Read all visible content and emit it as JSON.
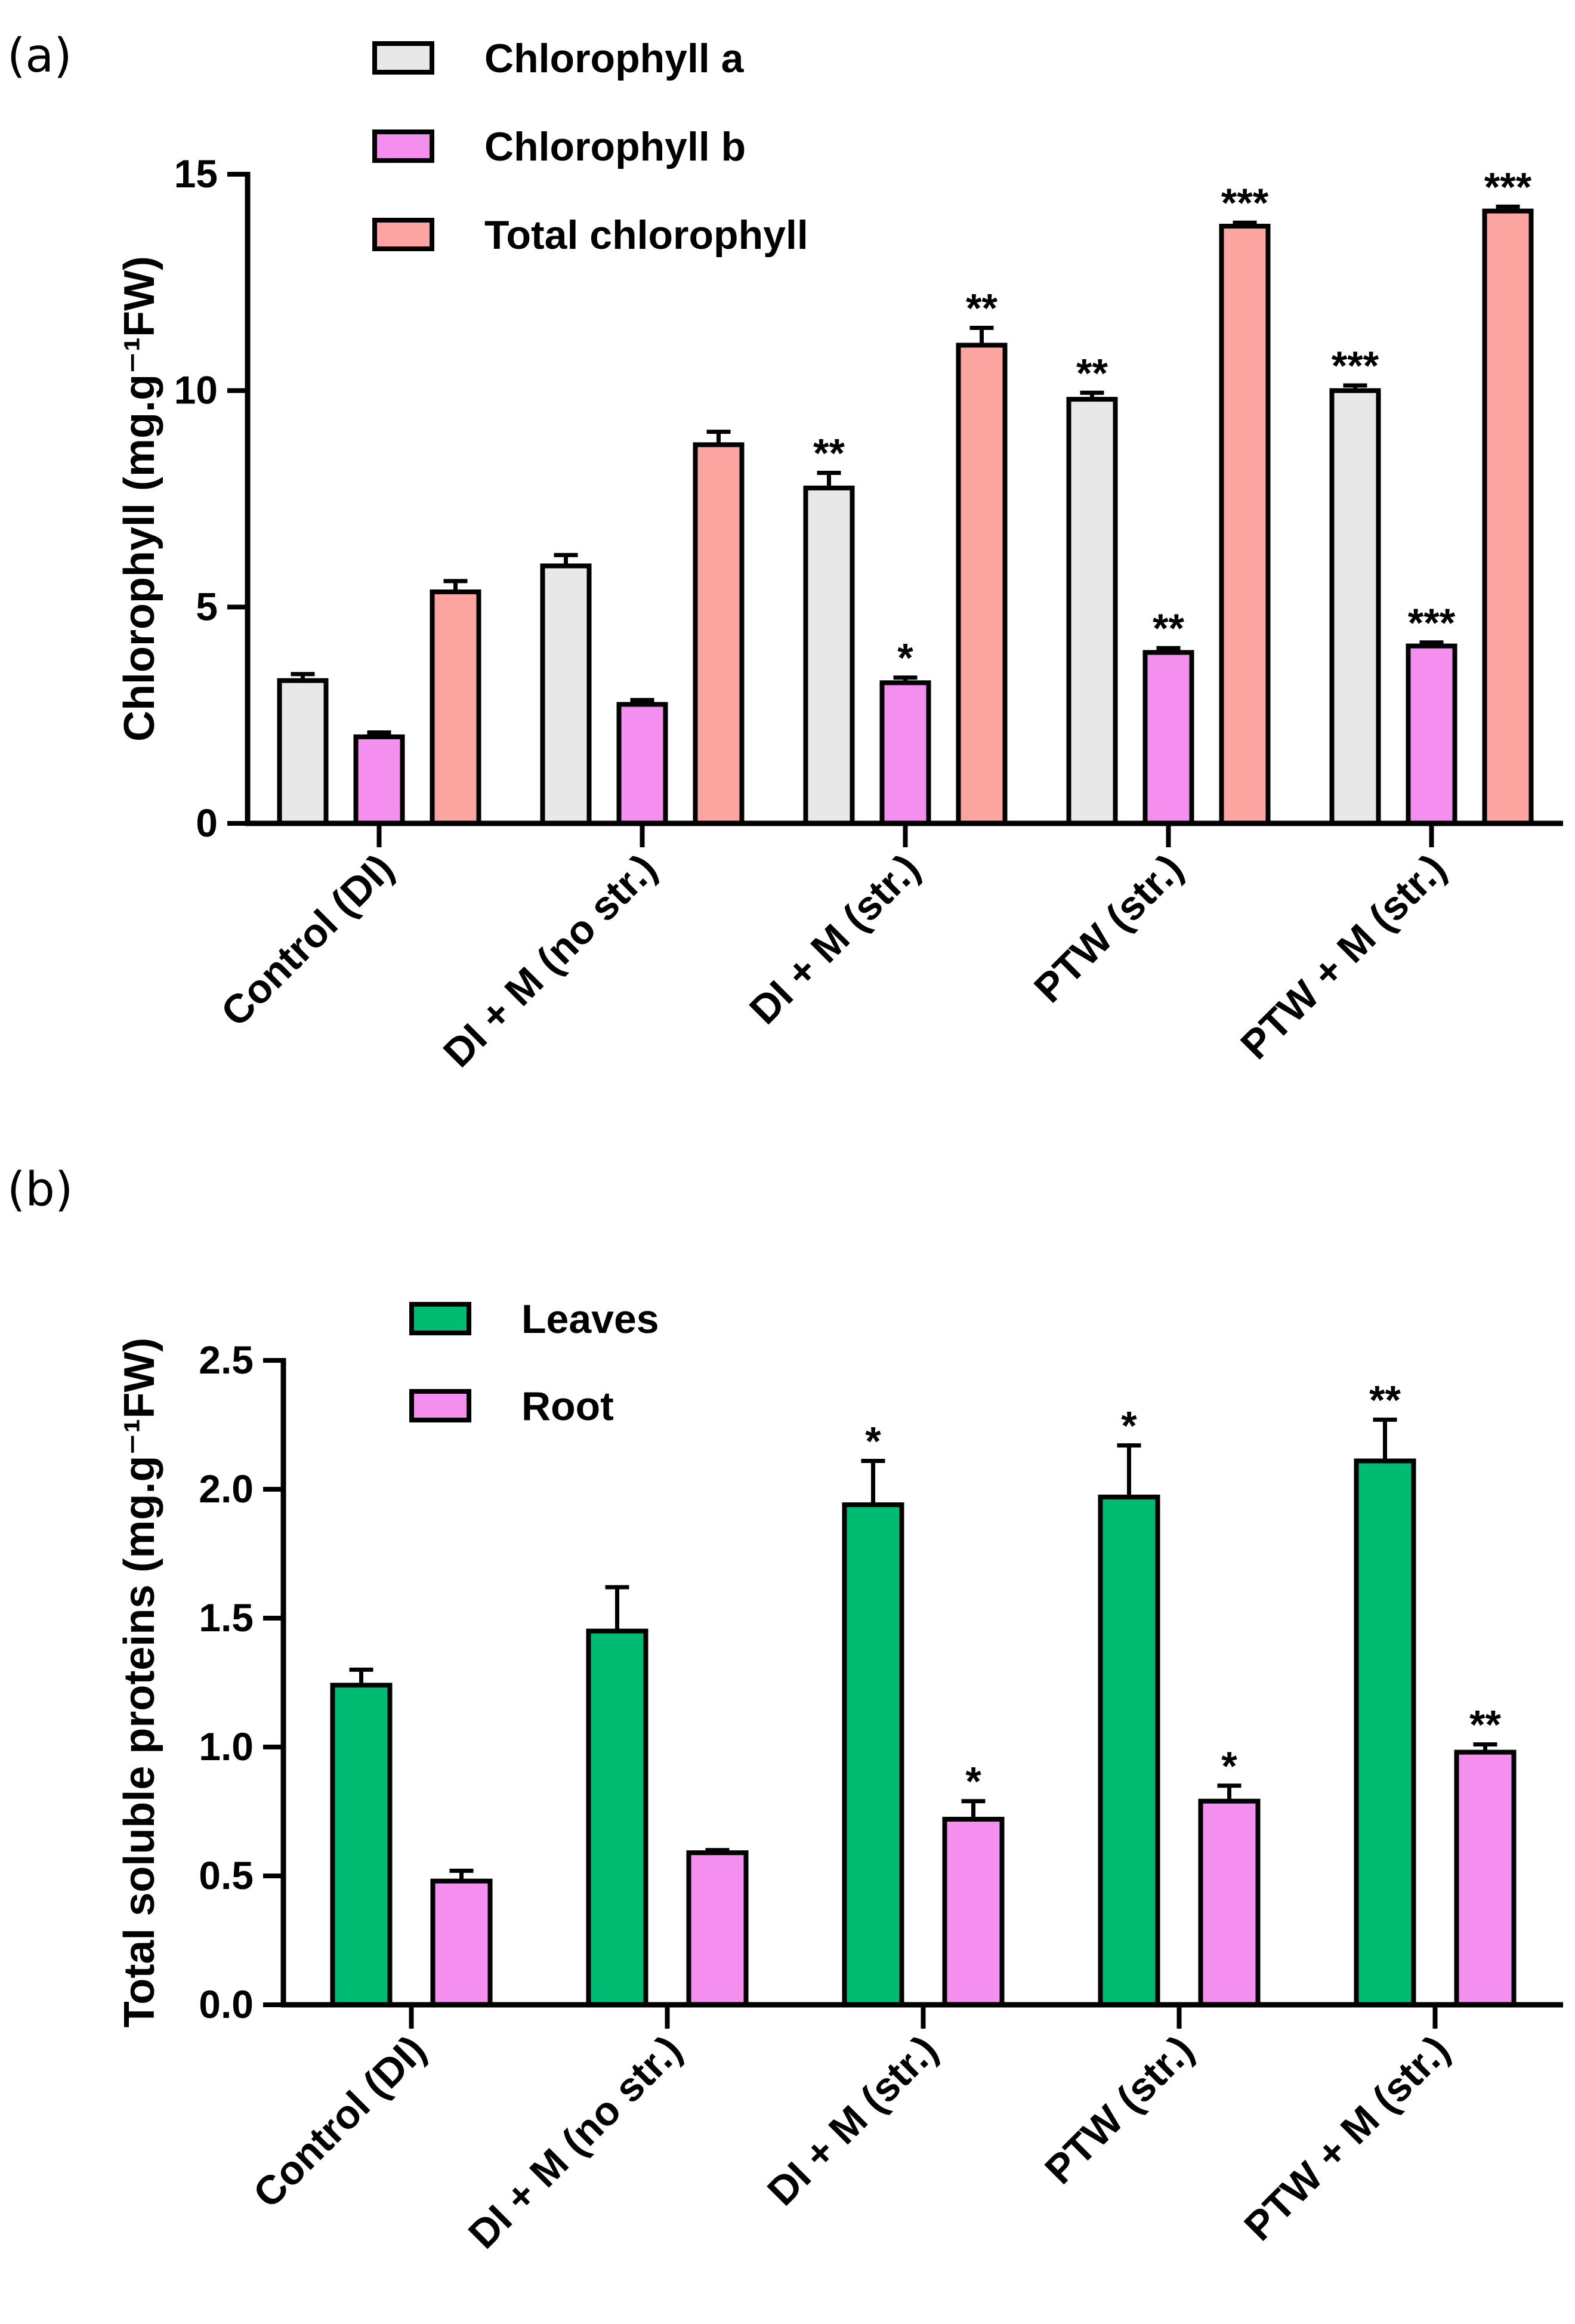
{
  "figure": {
    "panel_a_label": "(a)",
    "panel_b_label": "(b)"
  },
  "chart_data": [
    {
      "type": "bar",
      "panel": "(a)",
      "title": "",
      "xlabel": "",
      "ylabel": "Chlorophyll (mg.g⁻¹FW)",
      "ylim": [
        0,
        15
      ],
      "yticks": [
        "0",
        "5",
        "10",
        "15"
      ],
      "ytick_values": [
        0,
        5,
        10,
        15
      ],
      "categories": [
        "Control (DI)",
        "DI + M (no str.)",
        "DI + M (str.)",
        "PTW (str.)",
        "PTW + M (str.)"
      ],
      "legend_position": "top-left",
      "series": [
        {
          "name": "Chlorophyll a",
          "color": "#e8e8e8",
          "values": [
            3.3,
            5.95,
            7.75,
            9.8,
            10.0
          ],
          "errors": [
            0.15,
            0.25,
            0.35,
            0.15,
            0.12
          ],
          "significance": [
            "",
            "",
            "**",
            "**",
            "***"
          ]
        },
        {
          "name": "Chlorophyll b",
          "color": "#f48ff0",
          "values": [
            2.0,
            2.75,
            3.25,
            3.95,
            4.1
          ],
          "errors": [
            0.1,
            0.1,
            0.12,
            0.1,
            0.08
          ],
          "significance": [
            "",
            "",
            "*",
            "**",
            "***"
          ]
        },
        {
          "name": "Total chlorophyll",
          "color": "#fca5a0",
          "values": [
            5.35,
            8.75,
            11.05,
            13.8,
            14.15
          ],
          "errors": [
            0.25,
            0.3,
            0.4,
            0.08,
            0.1
          ],
          "significance": [
            "",
            "",
            "**",
            "***",
            "***"
          ]
        }
      ]
    },
    {
      "type": "bar",
      "panel": "(b)",
      "title": "",
      "xlabel": "",
      "ylabel": "Total soluble proteins (mg.g⁻¹FW)",
      "ylim": [
        0,
        2.5
      ],
      "yticks": [
        "0.0",
        "0.5",
        "1.0",
        "1.5",
        "2.0",
        "2.5"
      ],
      "ytick_values": [
        0,
        0.5,
        1.0,
        1.5,
        2.0,
        2.5
      ],
      "categories": [
        "Control (DI)",
        "DI + M (no str.)",
        "DI + M (str.)",
        "PTW (str.)",
        "PTW + M (str.)"
      ],
      "legend_position": "top-left",
      "series": [
        {
          "name": "Leaves",
          "color": "#00bb72",
          "values": [
            1.24,
            1.45,
            1.94,
            1.97,
            2.11
          ],
          "errors": [
            0.06,
            0.17,
            0.17,
            0.2,
            0.16
          ],
          "significance": [
            "",
            "",
            "*",
            "*",
            "**"
          ]
        },
        {
          "name": "Root",
          "color": "#f48ff0",
          "values": [
            0.48,
            0.59,
            0.72,
            0.79,
            0.98
          ],
          "errors": [
            0.04,
            0.01,
            0.07,
            0.06,
            0.03
          ],
          "significance": [
            "",
            "",
            "*",
            "*",
            "**"
          ]
        }
      ]
    }
  ]
}
